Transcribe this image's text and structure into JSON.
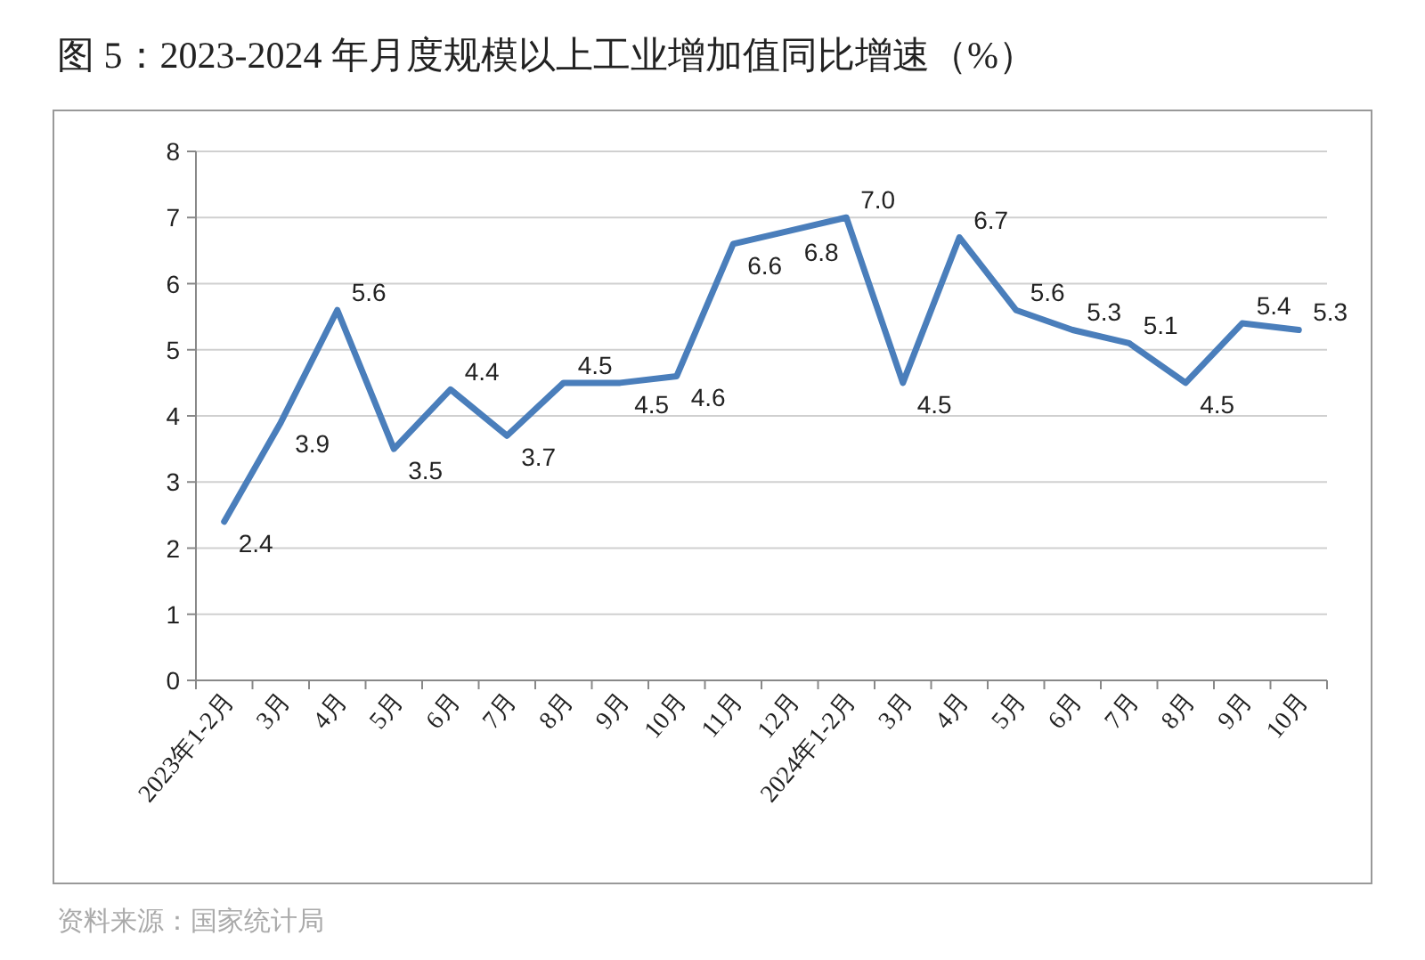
{
  "chart_data": {
    "type": "line",
    "title": "图 5：2023-2024 年月度规模以上工业增加值同比增速（%）",
    "categories": [
      "2023年1-2月",
      "3月",
      "4月",
      "5月",
      "6月",
      "7月",
      "8月",
      "9月",
      "10月",
      "11月",
      "12月",
      "2024年1-2月",
      "3月",
      "4月",
      "5月",
      "6月",
      "7月",
      "8月",
      "9月",
      "10月"
    ],
    "series": [
      {
        "color": "#4a7ebb",
        "values": [
          2.4,
          3.9,
          5.6,
          3.5,
          4.4,
          3.7,
          4.5,
          4.5,
          4.6,
          6.6,
          6.8,
          7.0,
          4.5,
          6.7,
          5.6,
          5.3,
          5.1,
          4.5,
          5.4,
          5.3
        ],
        "value_labels": [
          "2.4",
          "3.9",
          "5.6",
          "3.5",
          "4.4",
          "3.7",
          "4.5",
          "4.5",
          "4.6",
          "6.6",
          "6.8",
          "7.0",
          "4.5",
          "6.7",
          "5.6",
          "5.3",
          "5.1",
          "4.5",
          "5.4",
          "5.3"
        ]
      }
    ],
    "ylim": [
      0,
      8
    ],
    "yticks": [
      0,
      1,
      2,
      3,
      4,
      5,
      6,
      7,
      8
    ],
    "grid": "y",
    "marker": "none",
    "line_style": "solid",
    "annotations": [
      "资料来源：国家统计局"
    ]
  }
}
